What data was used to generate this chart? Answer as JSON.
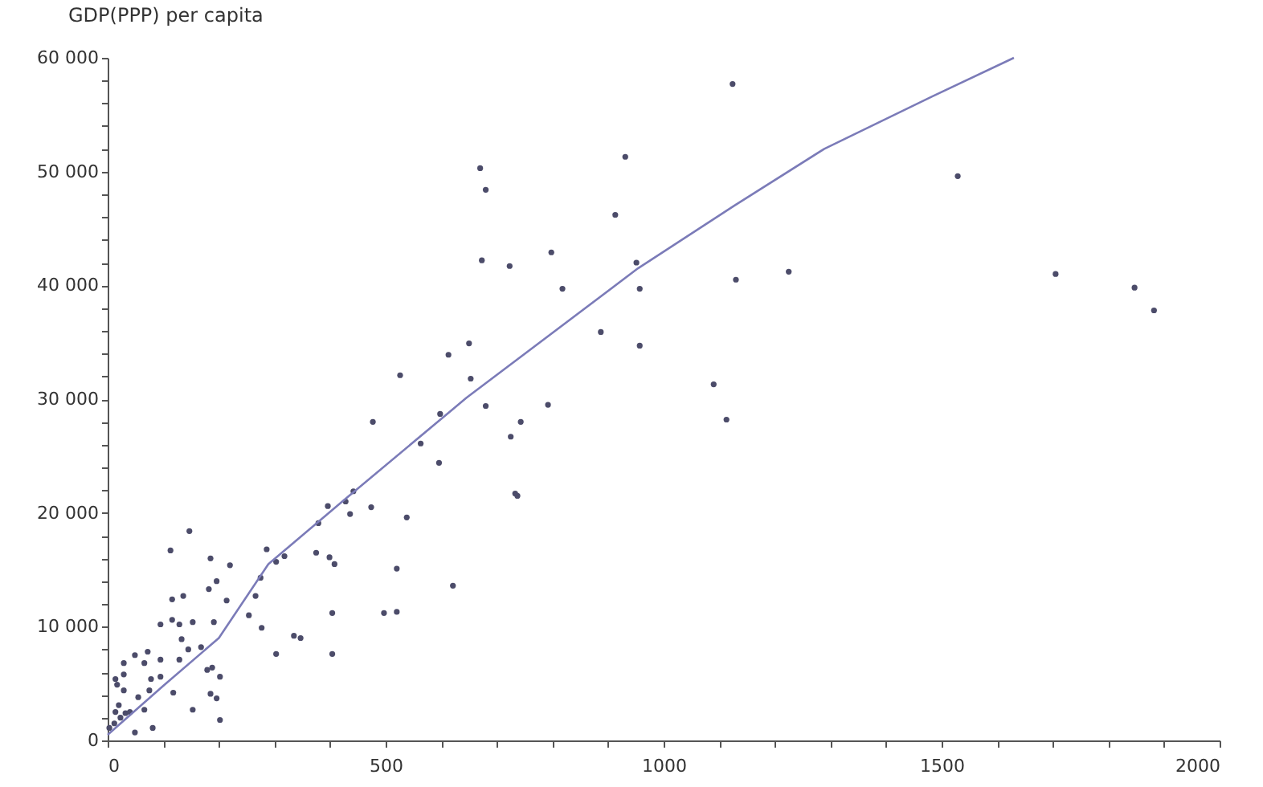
{
  "chart_data": {
    "type": "scatter",
    "ylabel": "GDP(PPP) per capita",
    "grid": false,
    "xlim": [
      0,
      2000
    ],
    "ylim": [
      0,
      60000
    ],
    "xticks": [
      0,
      {
        "value": 100,
        "label": null
      },
      {
        "value": 200,
        "label": null
      },
      {
        "value": 300,
        "label": null
      },
      {
        "value": 400,
        "label": null
      },
      500,
      {
        "value": 600,
        "label": null
      },
      {
        "value": 700,
        "label": null
      },
      {
        "value": 800,
        "label": null
      },
      {
        "value": 900,
        "label": null
      },
      1000,
      {
        "value": 1100,
        "label": null
      },
      {
        "value": 1200,
        "label": null
      },
      {
        "value": 1300,
        "label": null
      },
      {
        "value": 1400,
        "label": null
      },
      1500,
      {
        "value": 1600,
        "label": null
      },
      {
        "value": 1700,
        "label": null
      },
      {
        "value": 1800,
        "label": null
      },
      {
        "value": 1900,
        "label": null
      },
      2000
    ],
    "yticks": [
      0,
      {
        "value": 2000,
        "label": null
      },
      {
        "value": 4000,
        "label": null
      },
      {
        "value": 6000,
        "label": null
      },
      {
        "value": 8000,
        "label": null
      },
      {
        "value": 10000,
        "label": "10 000"
      },
      {
        "value": 12000,
        "label": null
      },
      {
        "value": 14000,
        "label": null
      },
      {
        "value": 16000,
        "label": null
      },
      {
        "value": 18000,
        "label": null
      },
      {
        "value": 20000,
        "label": "20 000"
      },
      {
        "value": 22000,
        "label": null
      },
      {
        "value": 24000,
        "label": null
      },
      {
        "value": 26000,
        "label": null
      },
      {
        "value": 28000,
        "label": null
      },
      {
        "value": 30000,
        "label": "30 000"
      },
      {
        "value": 32000,
        "label": null
      },
      {
        "value": 34000,
        "label": null
      },
      {
        "value": 36000,
        "label": null
      },
      {
        "value": 38000,
        "label": null
      },
      {
        "value": 40000,
        "label": "40 000"
      },
      {
        "value": 42000,
        "label": null
      },
      {
        "value": 44000,
        "label": null
      },
      {
        "value": 46000,
        "label": null
      },
      {
        "value": 48000,
        "label": null
      },
      {
        "value": 50000,
        "label": "50 000"
      },
      {
        "value": 52000,
        "label": null
      },
      {
        "value": 54000,
        "label": null
      },
      {
        "value": 56000,
        "label": null
      },
      {
        "value": 58000,
        "label": null
      },
      {
        "value": 60000,
        "label": "60 000"
      }
    ],
    "series": [
      {
        "color": "#4c4c6a",
        "marker": "circle",
        "x": [
          1124,
          670,
          680,
          931,
          913,
          673,
          723,
          798,
          818,
          887,
          951,
          957,
          957,
          1090,
          1130,
          1225,
          1529,
          1705,
          1847,
          1882,
          650,
          613,
          653,
          526,
          680,
          792,
          743,
          725,
          737,
          733,
          1113,
          621,
          477,
          598,
          563,
          596,
          538,
          520,
          497,
          520,
          474,
          442,
          428,
          436,
          396,
          379,
          375,
          399,
          408,
          404,
          404,
          303,
          286,
          318,
          303,
          347,
          335,
          275,
          266,
          254,
          277,
          214,
          220,
          196,
          182,
          185,
          147,
          113,
          116,
          136,
          116,
          129,
          95,
          153,
          191,
          133,
          145,
          168,
          129,
          95,
          95,
          179,
          188,
          202,
          185,
          196,
          153,
          202,
          118,
          72,
          66,
          49,
          29,
          29,
          14,
          17,
          29,
          55,
          75,
          78,
          66,
          81,
          49,
          20,
          3,
          12,
          23,
          32,
          40,
          14
        ],
        "values": [
          57700,
          50300,
          48400,
          51300,
          46200,
          42200,
          41700,
          42900,
          39700,
          35900,
          42000,
          39700,
          34700,
          31300,
          40500,
          41200,
          49600,
          41000,
          39800,
          37800,
          34900,
          33900,
          31800,
          32100,
          29400,
          29500,
          28000,
          26700,
          21500,
          21700,
          28200,
          13600,
          28000,
          28700,
          26100,
          24400,
          19600,
          11300,
          11200,
          15100,
          20500,
          21900,
          21000,
          19900,
          20600,
          19100,
          16500,
          16100,
          15500,
          11200,
          7600,
          7600,
          16800,
          16200,
          15700,
          9000,
          9200,
          14300,
          12700,
          11000,
          9900,
          12300,
          15400,
          14000,
          13300,
          16000,
          18400,
          16700,
          12400,
          12700,
          10600,
          10200,
          10200,
          10400,
          10400,
          8900,
          8000,
          8200,
          7100,
          7100,
          5600,
          6200,
          6400,
          5600,
          4100,
          3700,
          2700,
          1800,
          4200,
          7800,
          6800,
          7500,
          6800,
          5800,
          5400,
          4900,
          4400,
          3800,
          4400,
          5400,
          2700,
          1100,
          700,
          3100,
          1100,
          1500,
          2000,
          2400,
          2500,
          2500
        ]
      },
      {
        "type": "line",
        "color": "#7b7bb8",
        "line_style": "solid",
        "marker": "none",
        "x": [
          0,
          100,
          200,
          289,
          422,
          645,
          954,
          1127,
          1289,
          1483,
          1630
        ],
        "values": [
          500,
          4800,
          9000,
          15500,
          21000,
          30100,
          41500,
          47000,
          52000,
          56600,
          60000
        ]
      }
    ]
  }
}
